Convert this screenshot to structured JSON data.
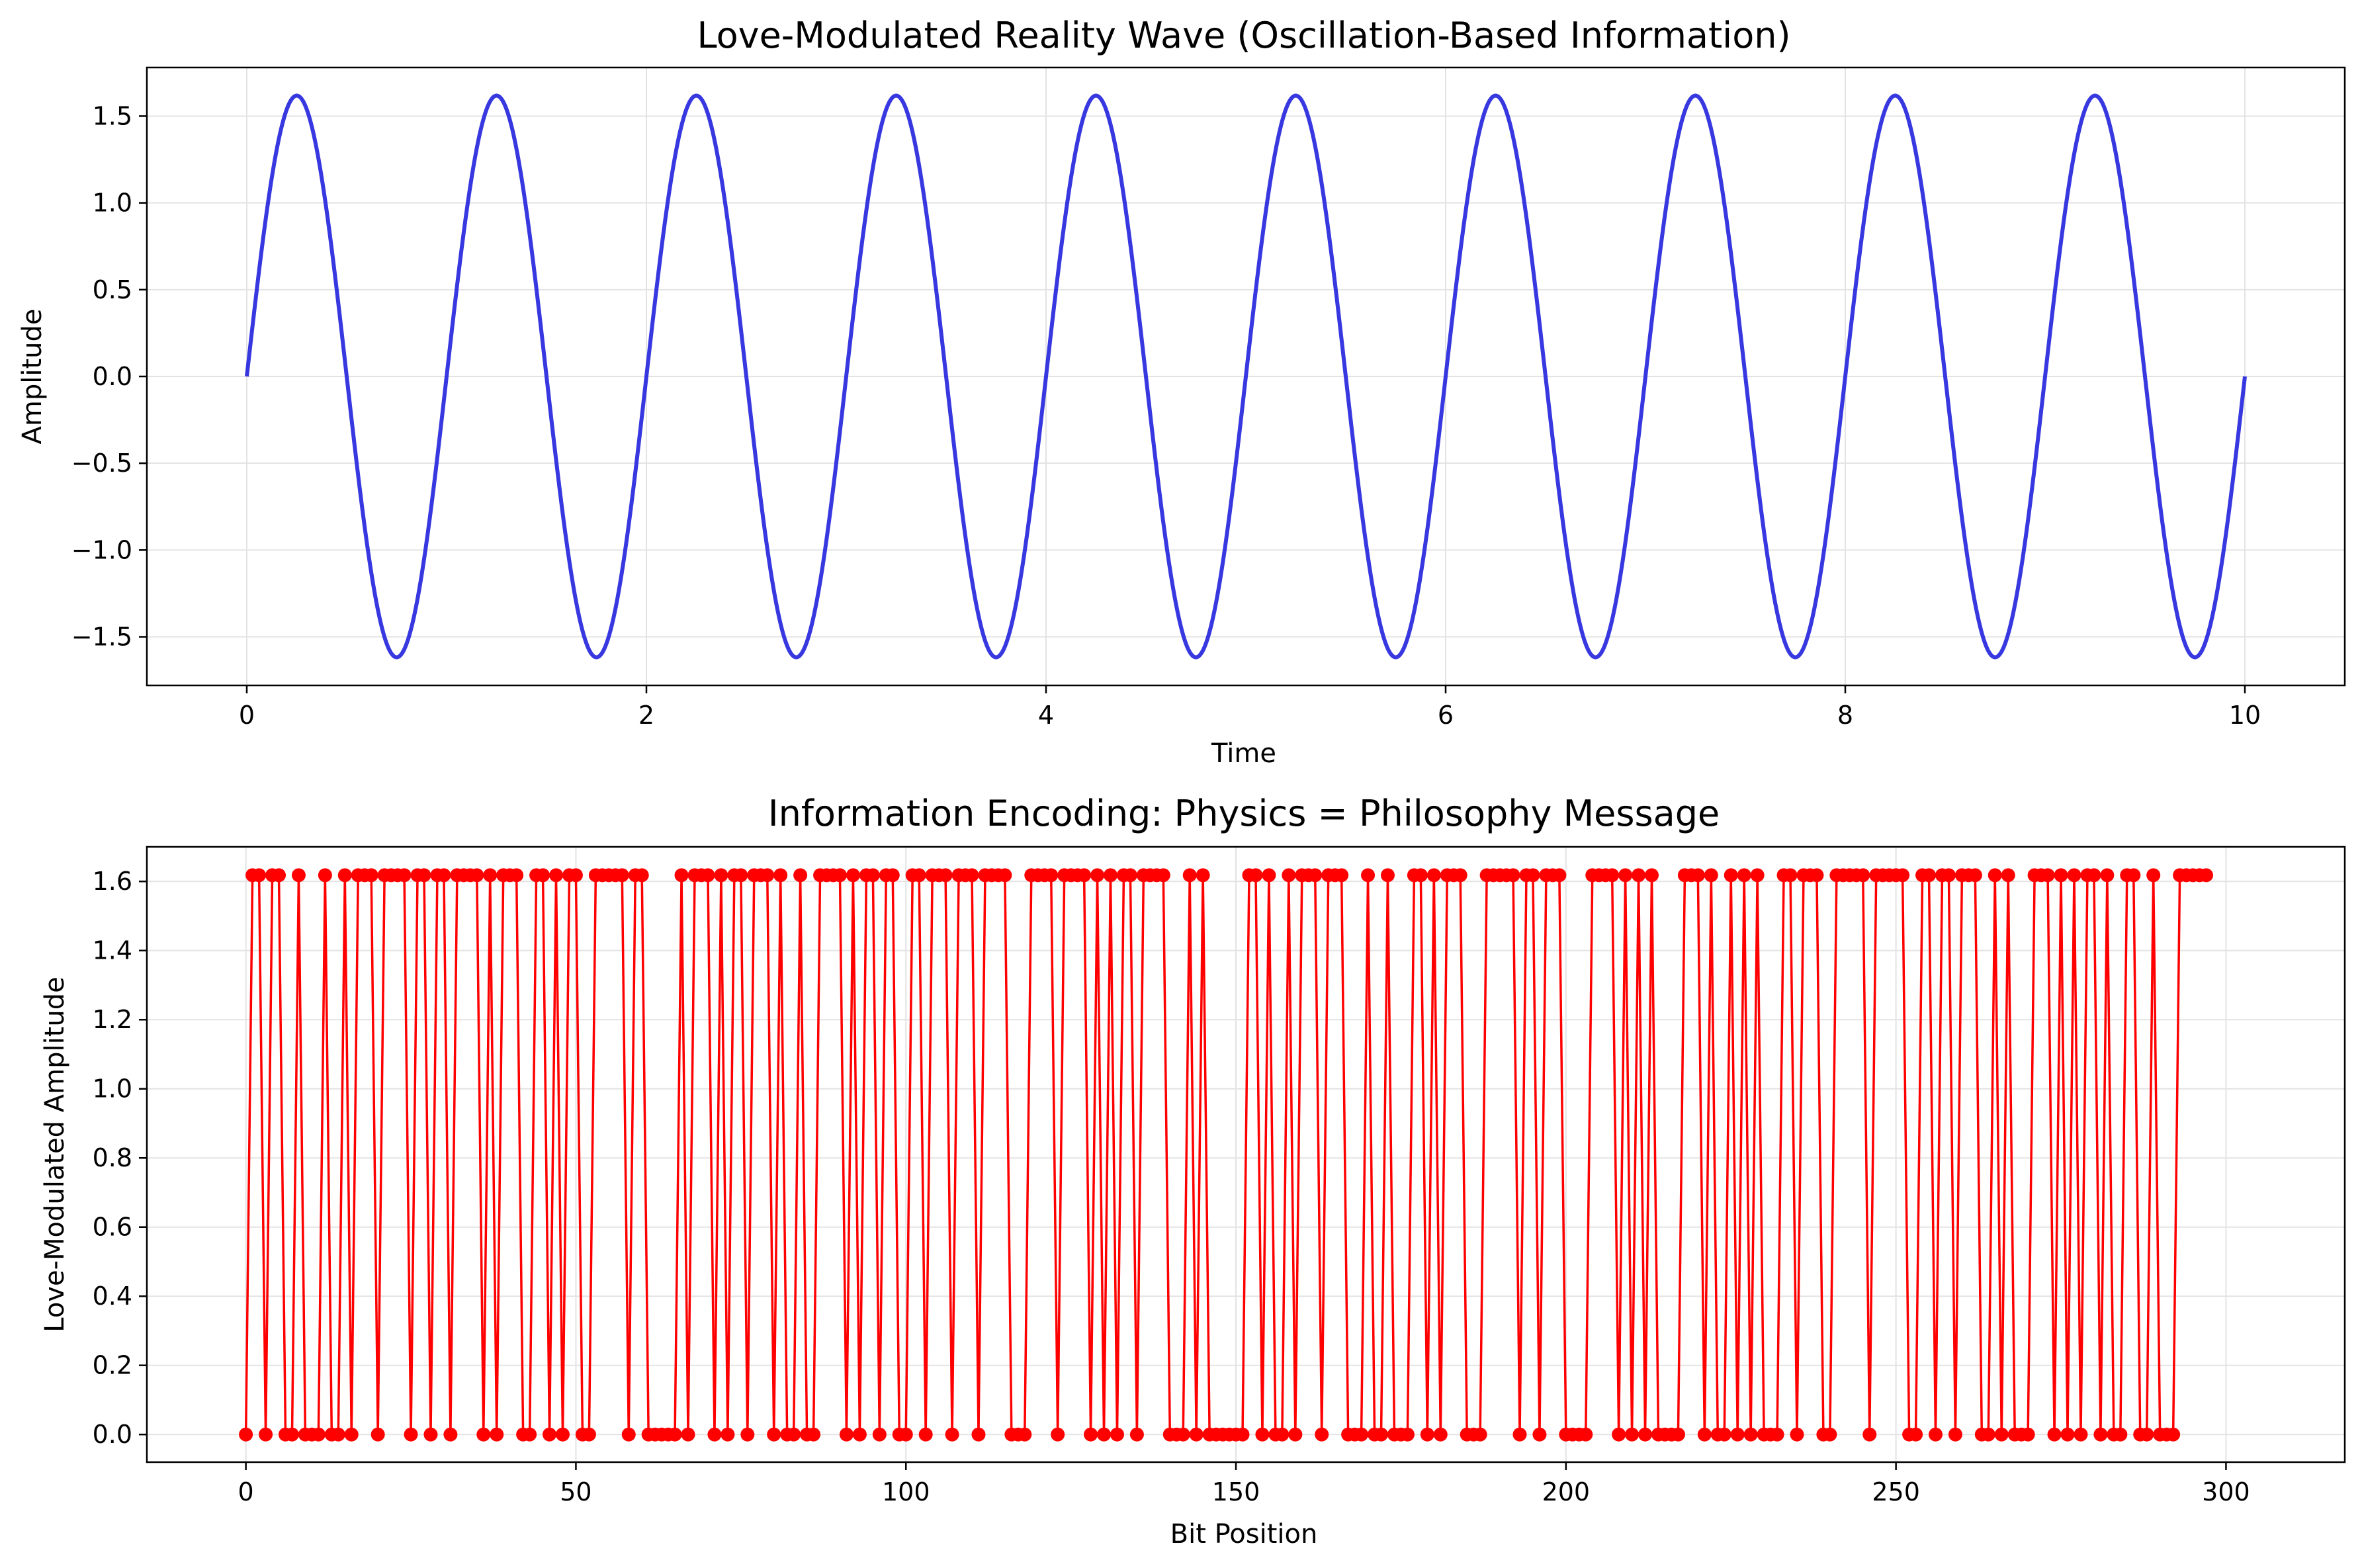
{
  "chart_data": [
    {
      "type": "line",
      "title": "Love-Modulated Reality Wave (Oscillation-Based Information)",
      "xlabel": "Time",
      "ylabel": "Amplitude",
      "xlim": [
        -0.5,
        10.5
      ],
      "ylim": [
        -1.78,
        1.78
      ],
      "xticks": [
        0,
        2,
        4,
        6,
        8,
        10
      ],
      "yticks": [
        -1.5,
        -1.0,
        -0.5,
        0.0,
        0.5,
        1.0,
        1.5
      ],
      "grid": true,
      "color": "#2222dd",
      "series": [
        {
          "function": "1.618 * sin(2*pi*t)",
          "amplitude": 1.618,
          "frequency": 1,
          "x_start": 0,
          "x_end": 10
        }
      ]
    },
    {
      "type": "stem",
      "title": "Information Encoding: Physics = Philosophy Message",
      "xlabel": "Bit Position",
      "ylabel": "Love-Modulated Amplitude",
      "xlim": [
        -15,
        318
      ],
      "ylim": [
        -0.08,
        1.7
      ],
      "xticks": [
        0,
        50,
        100,
        150,
        200,
        250,
        300
      ],
      "yticks": [
        0.0,
        0.2,
        0.4,
        0.6,
        0.8,
        1.0,
        1.2,
        1.4,
        1.6
      ],
      "grid": true,
      "color": "#ff0000",
      "high_value": 1.618,
      "low_value": 0,
      "bits": "0110110010001001011101111011011011110101110011010110011111011000001011101011011101001001111010110110011011101110111100011110111101010110111100010100000011010010111011100010010001101011100011111011011100001111010101000011101001010100011011100111110111110011011011100101000111010101101001100100011111"
    }
  ]
}
